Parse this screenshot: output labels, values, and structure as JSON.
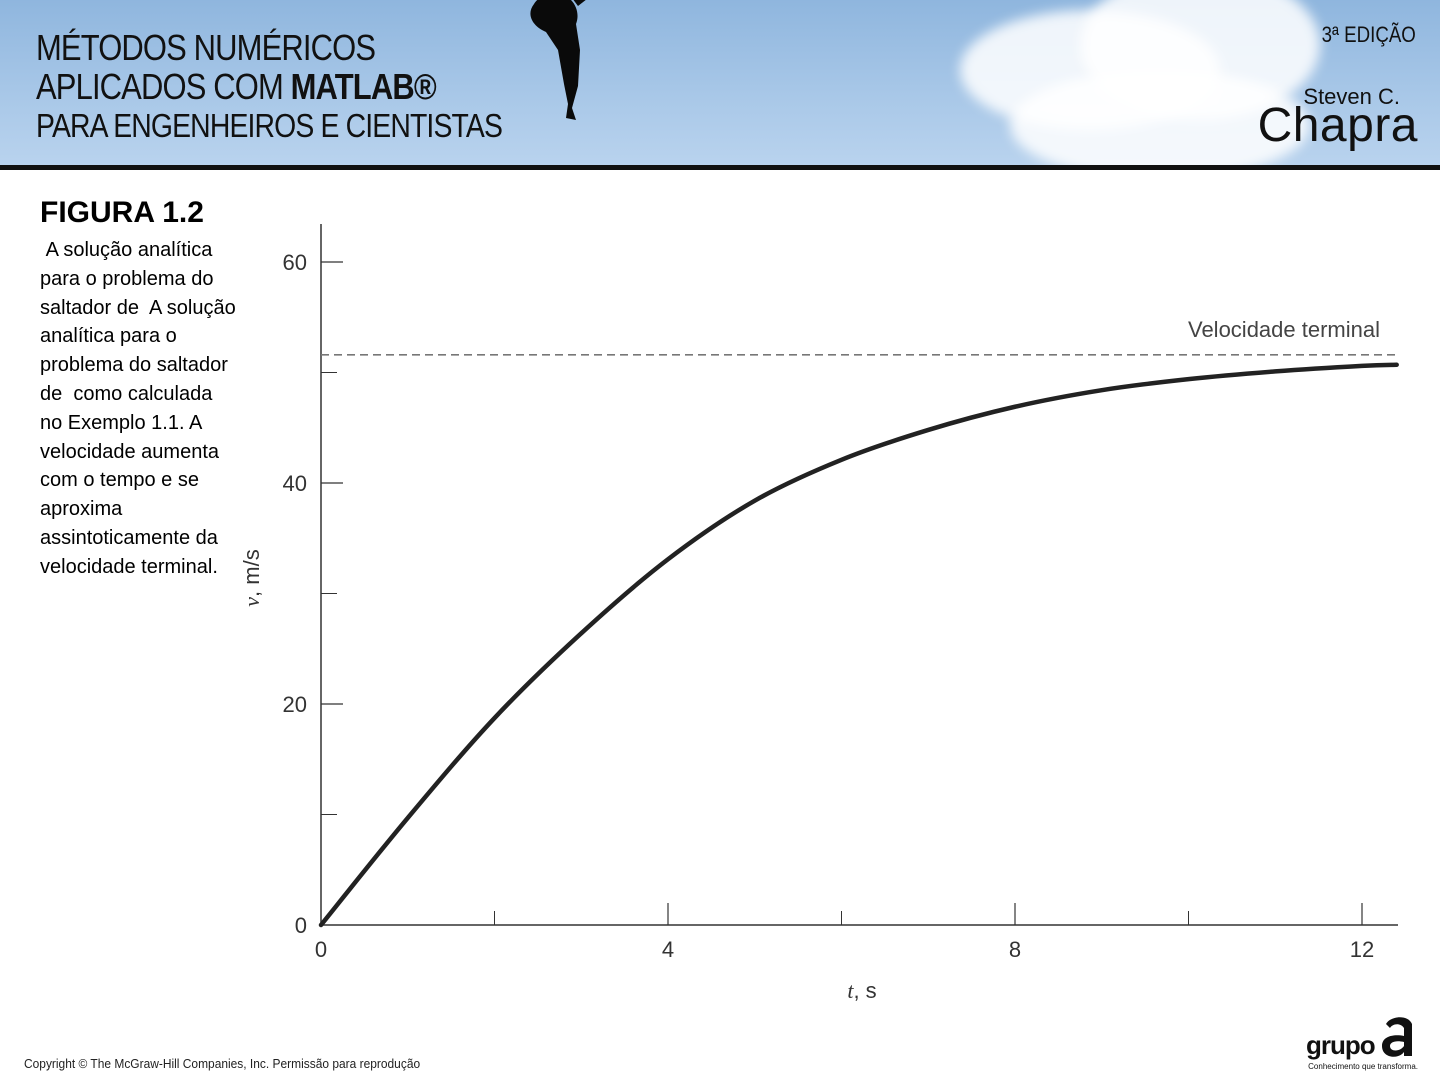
{
  "banner": {
    "title_line1": "MÉTODOS NUMÉRICOS",
    "title_line2_prefix": "APLICADOS COM ",
    "title_line2_brand": "MATLAB®",
    "title_line3": "PARA ENGENHEIROS E CIENTISTAS",
    "edition": "3ª EDIÇÃO",
    "author_first": "Steven C.",
    "author_last": "Chapra",
    "background_color": "#a9c8e8"
  },
  "figure": {
    "title": "FIGURA 1.2",
    "caption": " A solução analítica para o problema do saltador de  A solução analítica para o problema do saltador de  como calculada no Exemplo 1.1. A velocidade aumenta com o tempo e se aproxima assintoticamente da velocidade terminal."
  },
  "chart_data": {
    "type": "line",
    "title": "",
    "xlabel_italic": "t",
    "xlabel_unit": ", s",
    "ylabel_italic": "v",
    "ylabel_unit": ", m/s",
    "xlim": [
      0,
      12.4
    ],
    "ylim": [
      0,
      60
    ],
    "x_ticks": [
      0,
      4,
      8,
      12
    ],
    "x_minor_ticks": [
      2,
      6,
      10
    ],
    "y_ticks": [
      0,
      20,
      40,
      60
    ],
    "y_minor_ticks": [
      10,
      30,
      50
    ],
    "series": [
      {
        "x": [
          0,
          1,
          2,
          3,
          4,
          5,
          6,
          7,
          8,
          9,
          10,
          11,
          12,
          12.4
        ],
        "values": [
          0,
          9.69,
          18.73,
          26.4,
          33.1,
          38.4,
          42.1,
          44.8,
          46.9,
          48.4,
          49.4,
          50.1,
          50.6,
          50.7
        ],
        "color": "#222222"
      }
    ],
    "reference_line": {
      "label": "Velocidade terminal",
      "y": 51.6,
      "style": "dashed",
      "color": "#777777"
    },
    "grid": false
  },
  "footer": {
    "copyright": "Copyright © The McGraw-Hill Companies, Inc. Permissão para reprodução",
    "publisher_word": "grupo",
    "publisher_mark": "a",
    "publisher_tagline": "Conhecimento que transforma."
  }
}
